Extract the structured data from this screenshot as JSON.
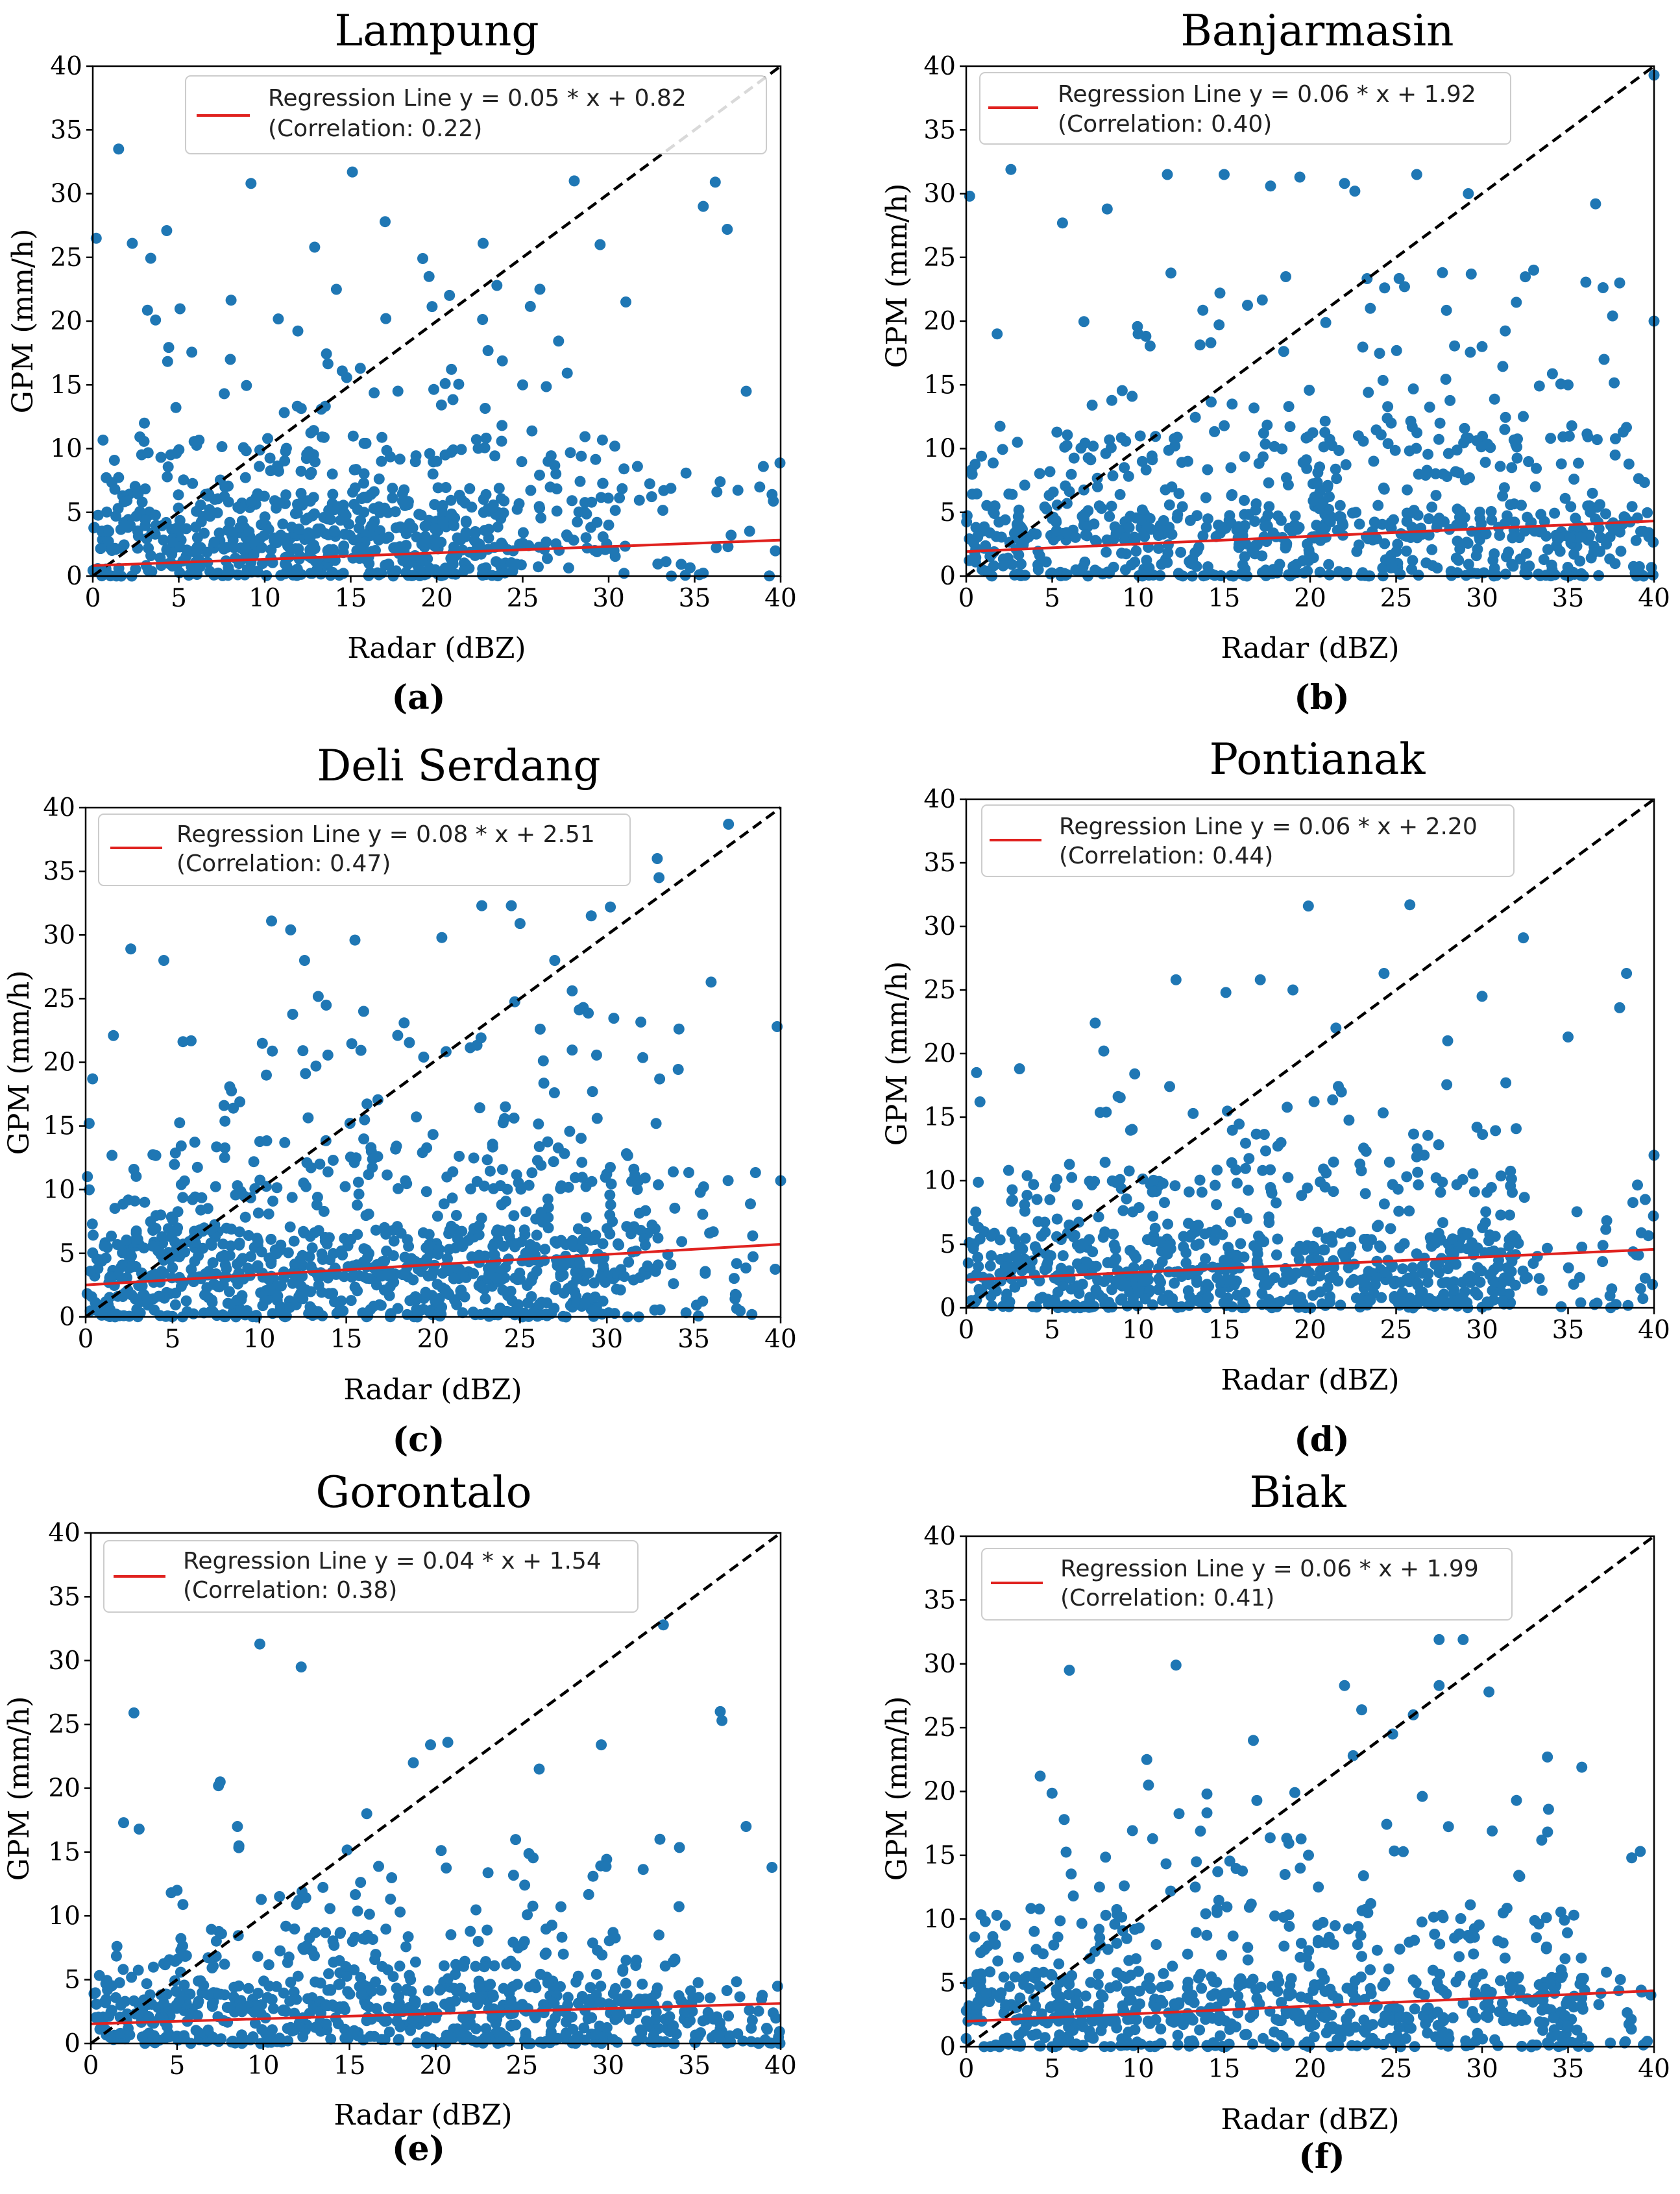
{
  "figure": {
    "x_label": "Radar (dBZ)",
    "y_label": "GPM (mm/h)",
    "point_color": "#1f77b4",
    "regression_color": "#e0221f",
    "diagonal_color": "#000000"
  },
  "chart_data": [
    {
      "id": "a",
      "type": "scatter",
      "title": "Lampung",
      "panel_label": "(a)",
      "xlabel": "Radar (dBZ)",
      "ylabel": "GPM (mm/h)",
      "xlim": [
        0,
        40
      ],
      "ylim": [
        0,
        40
      ],
      "xticks": [
        0,
        5,
        10,
        15,
        20,
        25,
        30,
        35,
        40
      ],
      "yticks": [
        0,
        5,
        10,
        15,
        20,
        25,
        30,
        35,
        40
      ],
      "regression": {
        "slope": 0.05,
        "intercept": 0.82
      },
      "legend": {
        "line1": "Regression Line y = 0.05 * x + 0.82",
        "line2": "(Correlation: 0.22)",
        "position": "top-right"
      },
      "seed": 11,
      "sample_points": [
        [
          1.5,
          33.5
        ],
        [
          9.2,
          30.8
        ],
        [
          15.1,
          31.7
        ],
        [
          28.0,
          31.0
        ],
        [
          36.2,
          30.9
        ],
        [
          36.9,
          27.2
        ],
        [
          29.5,
          26.0
        ],
        [
          12.9,
          25.8
        ],
        [
          22.7,
          26.1
        ],
        [
          2.3,
          26.1
        ],
        [
          0.2,
          26.5
        ],
        [
          4.3,
          27.1
        ],
        [
          23.5,
          22.8
        ],
        [
          17.0,
          27.8
        ],
        [
          26.0,
          22.5
        ],
        [
          31.0,
          21.5
        ],
        [
          8.0,
          17.0
        ],
        [
          35.5,
          29.0
        ],
        [
          39.5,
          6.4
        ],
        [
          3.0,
          12.0
        ],
        [
          38.0,
          14.5
        ],
        [
          30.0,
          4.0
        ],
        [
          20.0,
          9.0
        ],
        [
          25.0,
          15.0
        ]
      ],
      "clouds": [
        {
          "n": 380,
          "x": [
            0,
            24
          ],
          "y": [
            0,
            6.5
          ]
        },
        {
          "n": 260,
          "x": [
            0,
            31
          ],
          "y": [
            2,
            11
          ]
        },
        {
          "n": 70,
          "x": [
            3,
            28
          ],
          "y": [
            8,
            25
          ]
        },
        {
          "n": 50,
          "x": [
            24,
            40
          ],
          "y": [
            0,
            9
          ]
        }
      ]
    },
    {
      "id": "b",
      "type": "scatter",
      "title": "Banjarmasin",
      "panel_label": "(b)",
      "xlabel": "Radar (dBZ)",
      "ylabel": "GPM (mm/h)",
      "xlim": [
        0,
        40
      ],
      "ylim": [
        0,
        40
      ],
      "xticks": [
        0,
        5,
        10,
        15,
        20,
        25,
        30,
        35,
        40
      ],
      "yticks": [
        0,
        5,
        10,
        15,
        20,
        25,
        30,
        35,
        40
      ],
      "regression": {
        "slope": 0.06,
        "intercept": 1.92
      },
      "legend": {
        "line1": "Regression Line y = 0.06 * x + 1.92",
        "line2": "(Correlation: 0.40)",
        "position": "top-left"
      },
      "seed": 23,
      "sample_points": [
        [
          40.0,
          39.3
        ],
        [
          2.6,
          31.9
        ],
        [
          11.7,
          31.5
        ],
        [
          15.0,
          31.5
        ],
        [
          17.7,
          30.6
        ],
        [
          19.4,
          31.3
        ],
        [
          22.0,
          30.8
        ],
        [
          22.6,
          30.2
        ],
        [
          26.2,
          31.5
        ],
        [
          29.2,
          30.0
        ],
        [
          36.6,
          29.2
        ],
        [
          0.2,
          29.8
        ],
        [
          5.6,
          27.7
        ],
        [
          8.2,
          28.8
        ],
        [
          23.5,
          21.0
        ],
        [
          30.0,
          18.0
        ],
        [
          33.0,
          24.0
        ],
        [
          38.0,
          23.0
        ],
        [
          40.0,
          20.0
        ],
        [
          10.0,
          19.0
        ],
        [
          1.8,
          19.0
        ],
        [
          35.0,
          15.0
        ]
      ],
      "clouds": [
        {
          "n": 420,
          "x": [
            0,
            40
          ],
          "y": [
            0,
            5.5
          ]
        },
        {
          "n": 280,
          "x": [
            0,
            40
          ],
          "y": [
            3,
            12
          ]
        },
        {
          "n": 90,
          "x": [
            5,
            38
          ],
          "y": [
            10,
            24
          ]
        }
      ]
    },
    {
      "id": "c",
      "type": "scatter",
      "title": "Deli Serdang",
      "panel_label": "(c)",
      "xlabel": "Radar (dBZ)",
      "ylabel": "GPM (mm/h)",
      "xlim": [
        0,
        40
      ],
      "ylim": [
        0,
        40
      ],
      "xticks": [
        0,
        5,
        10,
        15,
        20,
        25,
        30,
        35,
        40
      ],
      "yticks": [
        0,
        5,
        10,
        15,
        20,
        25,
        30,
        35,
        40
      ],
      "regression": {
        "slope": 0.08,
        "intercept": 2.51
      },
      "legend": {
        "line1": "Regression Line y = 0.08 * x + 2.51",
        "line2": "(Correlation: 0.47)",
        "position": "top-left"
      },
      "seed": 37,
      "sample_points": [
        [
          37.0,
          38.7
        ],
        [
          32.9,
          36.0
        ],
        [
          33.0,
          34.5
        ],
        [
          22.8,
          32.3
        ],
        [
          24.5,
          32.3
        ],
        [
          25.0,
          30.9
        ],
        [
          29.1,
          31.5
        ],
        [
          30.2,
          32.2
        ],
        [
          10.7,
          31.1
        ],
        [
          11.8,
          30.4
        ],
        [
          2.6,
          28.9
        ],
        [
          4.5,
          28.0
        ],
        [
          12.6,
          28.0
        ],
        [
          15.5,
          29.6
        ],
        [
          20.5,
          29.8
        ],
        [
          36.0,
          26.3
        ],
        [
          39.8,
          22.8
        ],
        [
          1.6,
          22.1
        ],
        [
          0.4,
          18.7
        ],
        [
          0.2,
          15.2
        ],
        [
          40.0,
          10.7
        ],
        [
          16.0,
          24.0
        ],
        [
          27.0,
          28.0
        ]
      ],
      "clouds": [
        {
          "n": 520,
          "x": [
            0,
            30
          ],
          "y": [
            0,
            7
          ]
        },
        {
          "n": 320,
          "x": [
            0,
            33
          ],
          "y": [
            3,
            14
          ]
        },
        {
          "n": 110,
          "x": [
            5,
            35
          ],
          "y": [
            10,
            26
          ]
        },
        {
          "n": 60,
          "x": [
            28,
            40
          ],
          "y": [
            0,
            12
          ]
        }
      ]
    },
    {
      "id": "d",
      "type": "scatter",
      "title": "Pontianak",
      "panel_label": "(d)",
      "xlabel": "Radar (dBZ)",
      "ylabel": "GPM (mm/h)",
      "xlim": [
        0,
        40
      ],
      "ylim": [
        0,
        40
      ],
      "xticks": [
        0,
        5,
        10,
        15,
        20,
        25,
        30,
        35,
        40
      ],
      "yticks": [
        0,
        5,
        10,
        15,
        20,
        25,
        30,
        35,
        40
      ],
      "regression": {
        "slope": 0.06,
        "intercept": 2.2
      },
      "legend": {
        "line1": "Regression Line y = 0.06 * x + 2.20",
        "line2": "(Correlation: 0.44)",
        "position": "top-left"
      },
      "seed": 41,
      "sample_points": [
        [
          19.9,
          31.6
        ],
        [
          25.8,
          31.7
        ],
        [
          32.4,
          29.1
        ],
        [
          38.4,
          26.3
        ],
        [
          12.2,
          25.8
        ],
        [
          15.1,
          24.8
        ],
        [
          17.1,
          25.8
        ],
        [
          19.0,
          25.0
        ],
        [
          24.3,
          26.3
        ],
        [
          30.0,
          24.5
        ],
        [
          35.0,
          21.3
        ],
        [
          38.0,
          23.6
        ],
        [
          40.0,
          12.0
        ],
        [
          0.6,
          18.5
        ],
        [
          7.5,
          22.4
        ],
        [
          8.0,
          20.2
        ],
        [
          3.1,
          18.8
        ],
        [
          0.8,
          16.2
        ],
        [
          9.8,
          18.4
        ],
        [
          28.0,
          21.0
        ],
        [
          21.5,
          22.0
        ]
      ],
      "clouds": [
        {
          "n": 440,
          "x": [
            0,
            32
          ],
          "y": [
            0,
            6
          ]
        },
        {
          "n": 240,
          "x": [
            0,
            33
          ],
          "y": [
            2,
            11
          ]
        },
        {
          "n": 70,
          "x": [
            5,
            32
          ],
          "y": [
            9,
            18
          ]
        },
        {
          "n": 40,
          "x": [
            30,
            40
          ],
          "y": [
            0,
            10
          ]
        }
      ]
    },
    {
      "id": "e",
      "type": "scatter",
      "title": "Gorontalo",
      "panel_label": "(e)",
      "xlabel": "Radar (dBZ)",
      "ylabel": "GPM (mm/h)",
      "xlim": [
        0,
        40
      ],
      "ylim": [
        0,
        40
      ],
      "xticks": [
        0,
        5,
        10,
        15,
        20,
        25,
        30,
        35,
        40
      ],
      "yticks": [
        0,
        5,
        10,
        15,
        20,
        25,
        30,
        35,
        40
      ],
      "regression": {
        "slope": 0.04,
        "intercept": 1.54
      },
      "legend": {
        "line1": "Regression Line y = 0.04 * x + 1.54",
        "line2": "(Correlation: 0.38)",
        "position": "top-left"
      },
      "seed": 53,
      "sample_points": [
        [
          33.2,
          32.8
        ],
        [
          9.8,
          31.3
        ],
        [
          12.2,
          29.5
        ],
        [
          2.5,
          25.9
        ],
        [
          36.5,
          26.0
        ],
        [
          36.6,
          25.3
        ],
        [
          19.7,
          23.4
        ],
        [
          20.7,
          23.6
        ],
        [
          29.6,
          23.4
        ],
        [
          18.7,
          22.0
        ],
        [
          7.5,
          20.5
        ],
        [
          7.4,
          20.2
        ],
        [
          1.9,
          17.3
        ],
        [
          2.8,
          16.8
        ],
        [
          8.5,
          17.0
        ],
        [
          38.0,
          17.0
        ],
        [
          39.5,
          13.8
        ],
        [
          5.0,
          12.0
        ],
        [
          26.0,
          21.5
        ],
        [
          33.0,
          16.0
        ],
        [
          16.0,
          18.0
        ]
      ],
      "clouds": [
        {
          "n": 500,
          "x": [
            0,
            40
          ],
          "y": [
            0,
            5
          ]
        },
        {
          "n": 200,
          "x": [
            0,
            32
          ],
          "y": [
            2,
            9
          ]
        },
        {
          "n": 80,
          "x": [
            3,
            35
          ],
          "y": [
            6,
            16
          ]
        }
      ]
    },
    {
      "id": "f",
      "type": "scatter",
      "title": "Biak",
      "panel_label": "(f)",
      "xlabel": "Radar (dBZ)",
      "ylabel": "GPM (mm/h)",
      "xlim": [
        0,
        40
      ],
      "ylim": [
        0,
        40
      ],
      "xticks": [
        0,
        5,
        10,
        15,
        20,
        25,
        30,
        35,
        40
      ],
      "yticks": [
        0,
        5,
        10,
        15,
        20,
        25,
        30,
        35,
        40
      ],
      "regression": {
        "slope": 0.06,
        "intercept": 1.99
      },
      "legend": {
        "line1": "Regression Line y = 0.06 * x + 1.99",
        "line2": "(Correlation: 0.41)",
        "position": "top-left"
      },
      "seed": 67,
      "sample_points": [
        [
          27.5,
          31.9
        ],
        [
          28.9,
          31.9
        ],
        [
          30.4,
          27.8
        ],
        [
          12.2,
          29.9
        ],
        [
          6.0,
          29.5
        ],
        [
          22.0,
          28.3
        ],
        [
          23.0,
          26.4
        ],
        [
          26.0,
          26.0
        ],
        [
          27.5,
          28.3
        ],
        [
          10.5,
          22.5
        ],
        [
          16.7,
          24.0
        ],
        [
          22.5,
          22.8
        ],
        [
          33.8,
          22.7
        ],
        [
          35.8,
          21.9
        ],
        [
          4.3,
          21.2
        ],
        [
          10.6,
          20.5
        ],
        [
          38.7,
          14.8
        ],
        [
          39.2,
          15.3
        ],
        [
          5.7,
          17.8
        ],
        [
          32.0,
          19.3
        ],
        [
          14.0,
          19.8
        ],
        [
          24.8,
          24.5
        ]
      ],
      "clouds": [
        {
          "n": 400,
          "x": [
            0,
            36
          ],
          "y": [
            0,
            6
          ]
        },
        {
          "n": 260,
          "x": [
            0,
            36
          ],
          "y": [
            2,
            11
          ]
        },
        {
          "n": 80,
          "x": [
            3,
            34
          ],
          "y": [
            8,
            20
          ]
        },
        {
          "n": 30,
          "x": [
            34,
            40
          ],
          "y": [
            0,
            6
          ]
        }
      ]
    }
  ]
}
